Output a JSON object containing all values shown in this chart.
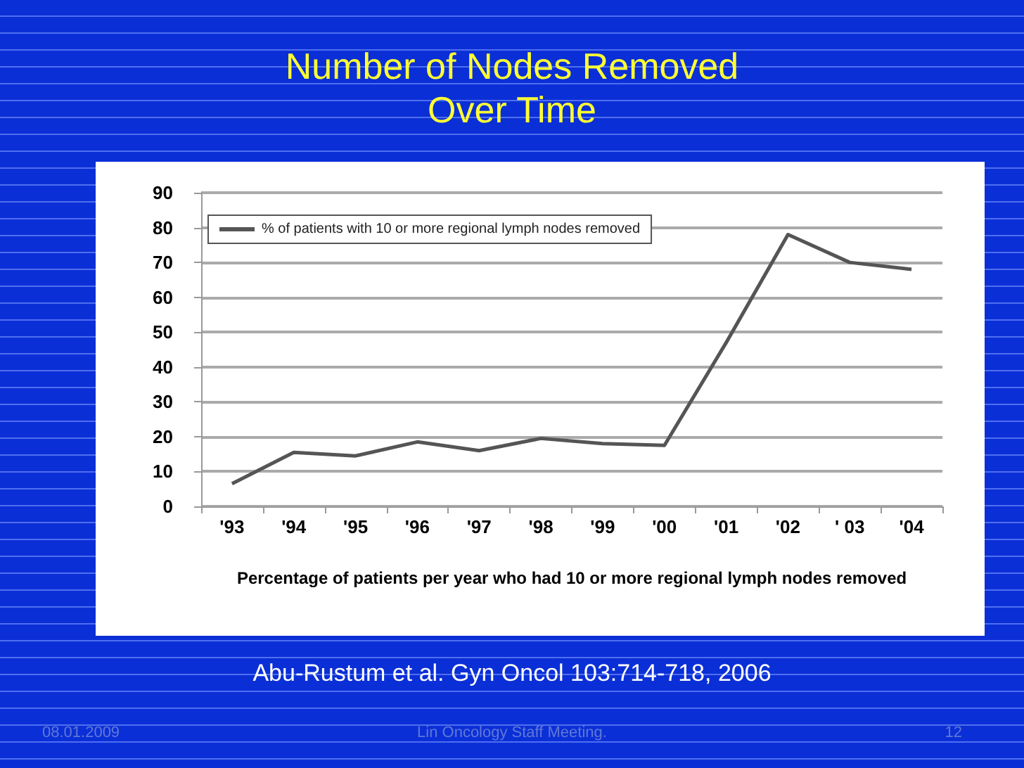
{
  "chart_data": {
    "type": "line",
    "title": "Number of Nodes Removed\nOver Time",
    "xlabel": "Percentage of patients per year who had 10 or more regional lymph nodes removed",
    "categories": [
      "'93",
      "'94",
      "'95",
      "'96",
      "'97",
      "'98",
      "'99",
      "'00",
      "'01",
      "'02",
      "' 03",
      "'04"
    ],
    "series": [
      {
        "name": "% of patients with 10 or more regional lymph nodes removed",
        "color": "#555555",
        "values": [
          6.5,
          15.5,
          14.5,
          18.5,
          16,
          19.5,
          18,
          17.5,
          47,
          78,
          70,
          68
        ]
      }
    ],
    "ylim": [
      0,
      90
    ],
    "yticks": [
      0,
      10,
      20,
      30,
      40,
      50,
      60,
      70,
      80,
      90
    ],
    "grid": "y",
    "legend": "top left",
    "marker": "none",
    "line_style": "solid",
    "annotations": [
      "Abu-Rustum et al. Gyn Oncol 103:714-718, 2006",
      "08.01.2009",
      "Lin Oncology Staff Meeting.",
      "12"
    ]
  }
}
